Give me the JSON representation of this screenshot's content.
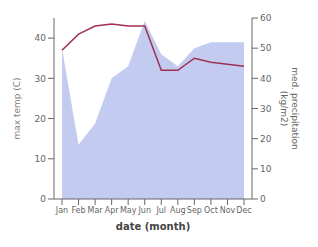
{
  "chart_data": {
    "type": "line",
    "categories": [
      "Jan",
      "Feb",
      "Mar",
      "Apr",
      "May",
      "Jun",
      "Jul",
      "Aug",
      "Sep",
      "Oct",
      "Nov",
      "Dec"
    ],
    "series": [
      {
        "type": "area",
        "color": "#bcc5ee",
        "axis": "y2",
        "values": [
          50,
          18,
          25,
          40,
          44,
          59,
          48,
          44,
          50,
          52,
          52,
          52
        ]
      },
      {
        "type": "line",
        "color": "#a03050",
        "values": [
          37,
          41,
          43,
          43.5,
          43,
          43,
          32,
          32,
          35,
          34,
          33.5,
          33
        ]
      }
    ],
    "xlabel": "date (month)",
    "ylabel": "max temp (C)",
    "y2label": "med. precipitation\n(kg/m2)",
    "ylim": [
      0,
      45
    ],
    "yticks": [
      0,
      10,
      20,
      30,
      40
    ],
    "y2lim": [
      0,
      60
    ],
    "y2ticks": [
      0,
      10,
      20,
      30,
      40,
      50,
      60
    ],
    "grid": false
  }
}
